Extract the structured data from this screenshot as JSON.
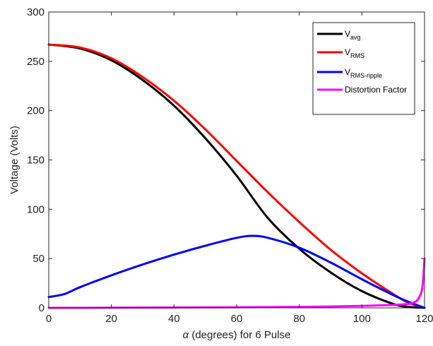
{
  "chart_data": {
    "type": "line",
    "xlabel_symbol": "α",
    "xlabel_text": " (degrees)  for 6 Pulse",
    "ylabel": "Voltage (Volts)",
    "xlim": [
      0,
      120
    ],
    "ylim": [
      0,
      300
    ],
    "x_ticks": [
      "0",
      "20",
      "40",
      "60",
      "80",
      "100",
      "120"
    ],
    "y_ticks": [
      "0",
      "50",
      "100",
      "150",
      "200",
      "250",
      "300"
    ],
    "grid": false,
    "legend_position": "top-right",
    "series": [
      {
        "name_main": "V",
        "name_sub": "avg",
        "color": "#000000",
        "x": [
          0,
          10,
          20,
          30,
          40,
          50,
          60,
          70,
          80,
          90,
          100,
          110,
          115,
          120
        ],
        "y": [
          267,
          263,
          251,
          231,
          205,
          172,
          134,
          91,
          60,
          36,
          17,
          4,
          1,
          0
        ]
      },
      {
        "name_main": "V",
        "name_sub": "RMS",
        "color": "#ff0000",
        "x": [
          0,
          10,
          20,
          30,
          40,
          50,
          60,
          70,
          80,
          90,
          100,
          110,
          115,
          120
        ],
        "y": [
          267,
          264,
          253,
          234,
          210,
          181,
          149,
          117,
          87,
          59,
          35,
          14,
          5,
          0
        ]
      },
      {
        "name_main": "V",
        "name_sub": "RMS-ripple",
        "color": "#0000ff",
        "x": [
          0,
          5,
          10,
          20,
          30,
          40,
          50,
          60,
          65,
          70,
          80,
          90,
          100,
          110,
          115,
          120
        ],
        "y": [
          11,
          14,
          21,
          33,
          44,
          54,
          63,
          71,
          73,
          71,
          61,
          46,
          29,
          13,
          6,
          0
        ]
      },
      {
        "name": "Distortion Factor",
        "color": "#ff00ff",
        "x": [
          0,
          40,
          80,
          100,
          110,
          115,
          117,
          118,
          119,
          119.5,
          120
        ],
        "y": [
          0,
          0.4,
          1,
          2,
          3,
          4,
          6,
          9,
          16,
          26,
          50
        ]
      }
    ]
  }
}
